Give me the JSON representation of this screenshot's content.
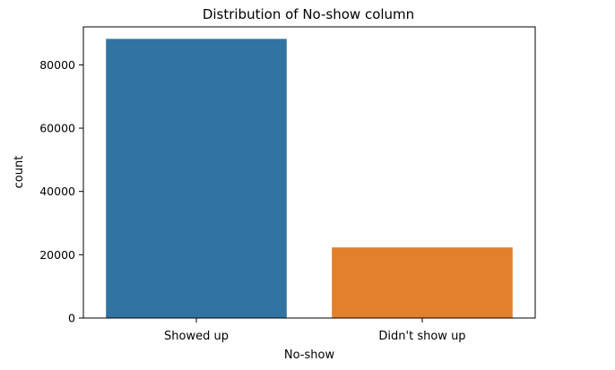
{
  "chart_data": {
    "type": "bar",
    "title": "Distribution of No-show column",
    "xlabel": "No-show",
    "ylabel": "count",
    "categories": [
      "Showed up",
      "Didn't show up"
    ],
    "values": [
      88208,
      22319
    ],
    "colors": [
      "#3274a1",
      "#e1812c"
    ],
    "ylim": [
      0,
      92000
    ],
    "yticks": [
      0,
      20000,
      40000,
      60000,
      80000
    ],
    "grid": false
  }
}
